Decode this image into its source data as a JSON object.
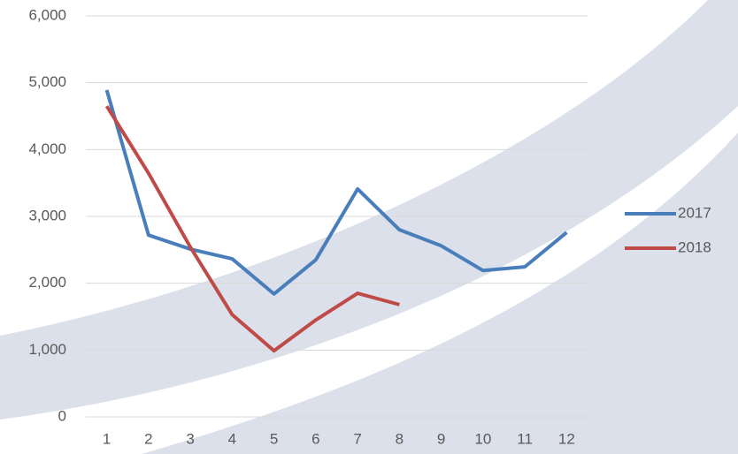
{
  "chart_data": {
    "type": "line",
    "categories": [
      1,
      2,
      3,
      4,
      5,
      6,
      7,
      8,
      9,
      10,
      11,
      12
    ],
    "series": [
      {
        "name": "2017",
        "color": "#4a7ebb",
        "values": [
          4890,
          2720,
          2510,
          2365,
          1840,
          2350,
          3410,
          2800,
          2560,
          2190,
          2245,
          2760
        ]
      },
      {
        "name": "2018",
        "color": "#be4b48",
        "values": [
          4650,
          3645,
          2540,
          1530,
          990,
          1450,
          1850,
          1680,
          null,
          null,
          null,
          null
        ]
      }
    ],
    "ylim": [
      0,
      6000
    ],
    "yticks": [
      0,
      {
        "value": 1000,
        "label": "1,000"
      },
      {
        "value": 2000,
        "label": "2,000"
      },
      {
        "value": 3000,
        "label": "3,000"
      },
      {
        "value": 4000,
        "label": "4,000"
      },
      {
        "value": 5000,
        "label": "5,000"
      },
      {
        "value": 6000,
        "label": "6,000"
      }
    ],
    "grid": true,
    "legend": "right"
  }
}
